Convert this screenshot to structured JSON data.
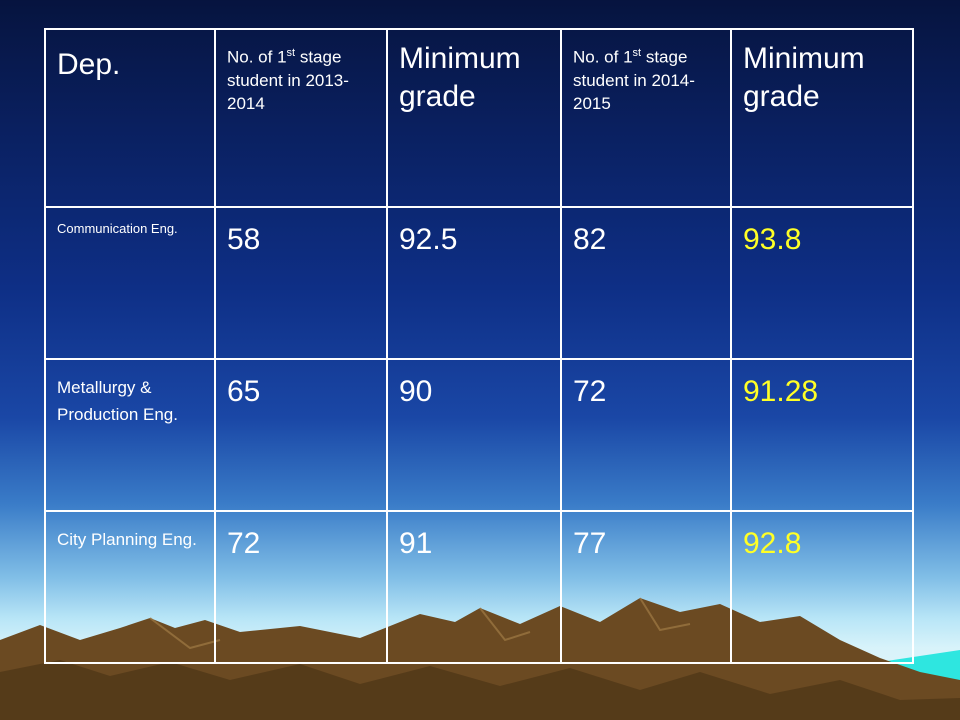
{
  "slide": {
    "background_colors": [
      "#06143f",
      "#1a47a6",
      "#b9e6f7"
    ],
    "mountain_color": "#6b4a22",
    "sea_color": "#2ee6e0",
    "highlight_color": "#ffff26"
  },
  "table": {
    "headers": [
      {
        "text": "Dep."
      },
      {
        "pre": "No. of 1",
        "sup": "st",
        "post": " stage student in 2013-2014"
      },
      {
        "text": "Minimum grade"
      },
      {
        "pre": "No. of 1",
        "sup": "st",
        "post": " stage student in 2014-2015"
      },
      {
        "text": "Minimum grade"
      }
    ],
    "rows": [
      {
        "dept": "Communication Eng.",
        "n2013": "58",
        "min2013": "92.5",
        "n2014": "82",
        "min2014": "93.8"
      },
      {
        "dept": "Metallurgy & Production Eng.",
        "n2013": "65",
        "min2013": "90",
        "n2014": "72",
        "min2014": "91.28"
      },
      {
        "dept": "City Planning Eng.",
        "n2013": "72",
        "min2013": "91",
        "n2014": "77",
        "min2014": "92.8"
      }
    ]
  }
}
